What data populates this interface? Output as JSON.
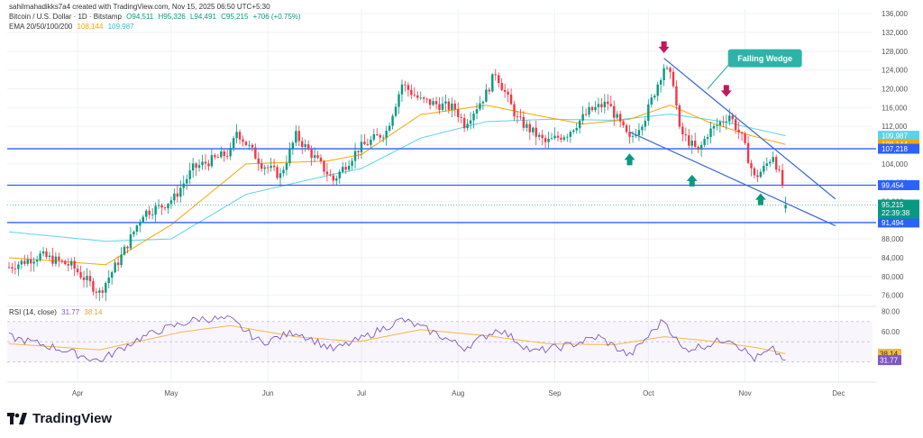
{
  "header": {
    "attribution": "sahilmahadikks7a4 created with TradingView.com, Nov 15, 2025 06:50 UTC+5:30",
    "symbol": "Bitcoin / U.S. Dollar · 1D · Bitstamp",
    "ohlc": [
      "O94,511",
      "H95,326",
      "L94,491",
      "C95,215",
      "+706 (+0.75%)"
    ],
    "ema_label": "EMA 20/50/100/200",
    "ema_values": [
      "108,144",
      "109,987"
    ],
    "rsi_label": "RSI (14, close)",
    "rsi_values": [
      "31.77",
      "38.14"
    ]
  },
  "brand": {
    "name": "TradingView"
  },
  "colors": {
    "up": "#089981",
    "down": "#f23645",
    "ema20": "#f7a600",
    "ema50": "#5ad4e6",
    "hline": "#2962ff",
    "wedge": "#3f6fd8",
    "rsi": "#7e57c2",
    "rsi_ma": "#f2b84b"
  },
  "chart_data": [
    {
      "type": "candlestick",
      "title": "Bitcoin / U.S. Dollar · 1D · Bitstamp",
      "ylim": [
        74000,
        137000
      ],
      "y_ticks": [
        "136,000",
        "132,000",
        "128,000",
        "124,000",
        "120,000",
        "116,000",
        "112,000",
        "108,000",
        "104,000",
        "100,000",
        "96,000",
        "92,000",
        "88,000",
        "84,000",
        "80,000",
        "76,000"
      ],
      "x_labels": [
        "Apr",
        "May",
        "Jun",
        "Jul",
        "Aug",
        "Sep",
        "Oct",
        "Nov",
        "Dec"
      ],
      "x_label_dates": [
        "2025-04-01",
        "2025-05-01",
        "2025-06-01",
        "2025-07-01",
        "2025-08-01",
        "2025-09-01",
        "2025-10-01",
        "2025-11-01",
        "2025-12-01"
      ],
      "start_date": "2025-03-10",
      "close_keypoints": [
        [
          "2025-03-10",
          82000
        ],
        [
          "2025-03-20",
          84500
        ],
        [
          "2025-03-30",
          82300
        ],
        [
          "2025-04-08",
          76500
        ],
        [
          "2025-04-15",
          84300
        ],
        [
          "2025-04-22",
          93500
        ],
        [
          "2025-04-28",
          95000
        ],
        [
          "2025-05-02",
          96800
        ],
        [
          "2025-05-08",
          103000
        ],
        [
          "2025-05-12",
          104200
        ],
        [
          "2025-05-20",
          106500
        ],
        [
          "2025-05-22",
          111000
        ],
        [
          "2025-05-30",
          104000
        ],
        [
          "2025-06-05",
          101500
        ],
        [
          "2025-06-10",
          110000
        ],
        [
          "2025-06-17",
          104500
        ],
        [
          "2025-06-22",
          100500
        ],
        [
          "2025-06-30",
          107200
        ],
        [
          "2025-07-09",
          111000
        ],
        [
          "2025-07-14",
          121000
        ],
        [
          "2025-07-20",
          117500
        ],
        [
          "2025-07-31",
          115800
        ],
        [
          "2025-08-03",
          112500
        ],
        [
          "2025-08-10",
          119000
        ],
        [
          "2025-08-13",
          123500
        ],
        [
          "2025-08-20",
          113500
        ],
        [
          "2025-08-29",
          108500
        ],
        [
          "2025-09-05",
          110500
        ],
        [
          "2025-09-12",
          115200
        ],
        [
          "2025-09-18",
          117000
        ],
        [
          "2025-09-25",
          109000
        ],
        [
          "2025-09-30",
          114000
        ],
        [
          "2025-10-06",
          124700
        ],
        [
          "2025-10-09",
          121500
        ],
        [
          "2025-10-11",
          111000
        ],
        [
          "2025-10-17",
          106500
        ],
        [
          "2025-10-20",
          110500
        ],
        [
          "2025-10-27",
          114500
        ],
        [
          "2025-10-31",
          109500
        ],
        [
          "2025-11-04",
          101000
        ],
        [
          "2025-11-07",
          103000
        ],
        [
          "2025-11-10",
          106000
        ],
        [
          "2025-11-13",
          99500
        ],
        [
          "2025-11-14",
          95215
        ]
      ],
      "ema20_keypoints": [
        [
          "2025-03-10",
          84000
        ],
        [
          "2025-04-10",
          82500
        ],
        [
          "2025-05-01",
          91000
        ],
        [
          "2025-05-25",
          104000
        ],
        [
          "2025-06-20",
          104600
        ],
        [
          "2025-07-01",
          106000
        ],
        [
          "2025-07-20",
          114500
        ],
        [
          "2025-08-10",
          116500
        ],
        [
          "2025-08-25",
          114500
        ],
        [
          "2025-09-10",
          112500
        ],
        [
          "2025-09-25",
          113500
        ],
        [
          "2025-10-08",
          116500
        ],
        [
          "2025-10-20",
          113000
        ],
        [
          "2025-11-03",
          110000
        ],
        [
          "2025-11-14",
          108144
        ]
      ],
      "ema50_keypoints": [
        [
          "2025-03-10",
          89500
        ],
        [
          "2025-04-10",
          87500
        ],
        [
          "2025-05-01",
          88000
        ],
        [
          "2025-05-25",
          97500
        ],
        [
          "2025-06-20",
          101500
        ],
        [
          "2025-07-01",
          103000
        ],
        [
          "2025-07-20",
          109500
        ],
        [
          "2025-08-10",
          113000
        ],
        [
          "2025-08-30",
          113500
        ],
        [
          "2025-09-20",
          113300
        ],
        [
          "2025-10-08",
          114600
        ],
        [
          "2025-10-25",
          113000
        ],
        [
          "2025-11-14",
          109987
        ]
      ],
      "horizontal_levels": [
        107218,
        99454,
        91494
      ],
      "last_price_label": "95,215",
      "countdown": "22:39:38",
      "price_labels": [
        {
          "value": 109987,
          "text": "109,987",
          "color": "#5ad4e6"
        },
        {
          "value": 108144,
          "text": "108,144",
          "color": "#f7a600"
        },
        {
          "value": 107218,
          "text": "107,218",
          "color": "#2962ff"
        },
        {
          "value": 99454,
          "text": "99,454",
          "color": "#2962ff"
        },
        {
          "value": 91494,
          "text": "91,494",
          "color": "#2962ff"
        }
      ],
      "wedge_lines": [
        {
          "from": [
            "2025-10-06",
            126500
          ],
          "to": [
            "2025-11-30",
            96500
          ]
        },
        {
          "from": [
            "2025-09-25",
            110800
          ],
          "to": [
            "2025-11-30",
            90800
          ]
        }
      ],
      "annotation": {
        "text": "Falling Wedge",
        "at": [
          "2025-10-30",
          126500
        ],
        "pointer": [
          "2025-10-20",
          120000
        ]
      },
      "down_arrows": [
        [
          "2025-10-06",
          127800
        ],
        [
          "2025-10-26",
          118500
        ]
      ],
      "up_arrows": [
        [
          "2025-09-25",
          106000
        ],
        [
          "2025-10-15",
          101500
        ],
        [
          "2025-11-06",
          97500
        ]
      ]
    },
    {
      "type": "line",
      "title": "RSI (14, close)",
      "ylim": [
        10,
        85
      ],
      "y_ticks": [
        "80.00",
        "60.00"
      ],
      "levels": [
        70,
        50,
        30
      ],
      "rsi_keypoints": [
        [
          "2025-03-10",
          55
        ],
        [
          "2025-03-25",
          44
        ],
        [
          "2025-04-08",
          31
        ],
        [
          "2025-04-20",
          52
        ],
        [
          "2025-04-28",
          62
        ],
        [
          "2025-05-10",
          73
        ],
        [
          "2025-05-20",
          72
        ],
        [
          "2025-05-30",
          49
        ],
        [
          "2025-06-10",
          60
        ],
        [
          "2025-06-22",
          42
        ],
        [
          "2025-07-01",
          53
        ],
        [
          "2025-07-14",
          72
        ],
        [
          "2025-07-25",
          58
        ],
        [
          "2025-08-03",
          44
        ],
        [
          "2025-08-14",
          63
        ],
        [
          "2025-08-25",
          40
        ],
        [
          "2025-09-05",
          46
        ],
        [
          "2025-09-15",
          55
        ],
        [
          "2025-09-25",
          36
        ],
        [
          "2025-10-06",
          72
        ],
        [
          "2025-10-12",
          42
        ],
        [
          "2025-10-20",
          47
        ],
        [
          "2025-10-27",
          54
        ],
        [
          "2025-11-04",
          33
        ],
        [
          "2025-11-10",
          42
        ],
        [
          "2025-11-14",
          31.77
        ]
      ],
      "rsi_ma_keypoints": [
        [
          "2025-03-10",
          48
        ],
        [
          "2025-04-08",
          42
        ],
        [
          "2025-05-05",
          60
        ],
        [
          "2025-05-20",
          66
        ],
        [
          "2025-06-10",
          55
        ],
        [
          "2025-06-30",
          50
        ],
        [
          "2025-07-20",
          62
        ],
        [
          "2025-08-10",
          56
        ],
        [
          "2025-08-30",
          48
        ],
        [
          "2025-09-20",
          47
        ],
        [
          "2025-10-06",
          55
        ],
        [
          "2025-10-20",
          51
        ],
        [
          "2025-11-05",
          44
        ],
        [
          "2025-11-14",
          38.14
        ]
      ],
      "value_labels": [
        {
          "value": 38.14,
          "text": "38.14",
          "color": "#f2b84b"
        },
        {
          "value": 31.77,
          "text": "31.77",
          "color": "#7e57c2"
        }
      ]
    }
  ]
}
